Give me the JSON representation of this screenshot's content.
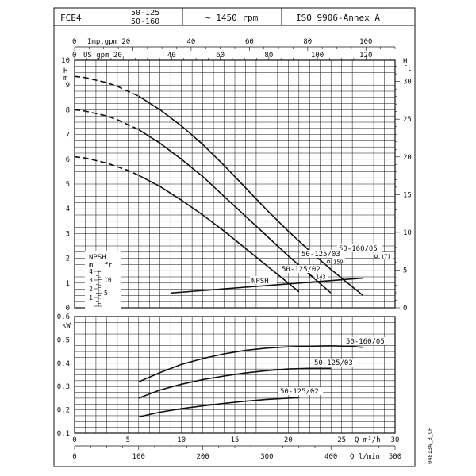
{
  "header": {
    "model": "FCE4",
    "sizes": [
      "50-125",
      "50-160"
    ],
    "speed": "~ 1450 rpm",
    "standard": "ISO 9906-Annex A"
  },
  "footer_code": "04813A_B_CH",
  "chart_data": [
    {
      "type": "line",
      "title": "",
      "x": {
        "unit": "Q m³/h",
        "range": [
          0,
          30
        ],
        "ticks": [
          0,
          5,
          10,
          15,
          20,
          25,
          30
        ]
      },
      "x_secondary": [
        {
          "unit": "Imp.gpm",
          "label": "Imp.gpm 20",
          "range": [
            0,
            110
          ],
          "ticks": [
            0,
            20,
            40,
            60,
            80,
            100
          ]
        },
        {
          "unit": "US gpm",
          "label": "US gpm 20",
          "range": [
            0,
            132
          ],
          "ticks": [
            0,
            20,
            40,
            60,
            80,
            100,
            120
          ]
        },
        {
          "unit": "Q l/min",
          "range": [
            0,
            500
          ],
          "ticks": [
            0,
            100,
            200,
            300,
            400,
            500
          ]
        }
      ],
      "y_left": {
        "unit": "H m",
        "range": [
          0,
          10
        ],
        "ticks": [
          0,
          1,
          2,
          3,
          4,
          5,
          6,
          7,
          8,
          9,
          10
        ]
      },
      "y_right": {
        "unit": "H ft",
        "range": [
          0,
          32.8
        ],
        "ticks": [
          0,
          5,
          10,
          15,
          20,
          25,
          30
        ]
      },
      "grid": true,
      "series": [
        {
          "name": "50-160/05",
          "dashed_until_x": 6,
          "points": [
            [
              0,
              9.35
            ],
            [
              1,
              9.3
            ],
            [
              2,
              9.2
            ],
            [
              3,
              9.1
            ],
            [
              4,
              8.95
            ],
            [
              5,
              8.75
            ],
            [
              6,
              8.55
            ],
            [
              8,
              8.0
            ],
            [
              10,
              7.35
            ],
            [
              12,
              6.6
            ],
            [
              14,
              5.75
            ],
            [
              16,
              4.85
            ],
            [
              18,
              3.95
            ],
            [
              20,
              3.1
            ],
            [
              22,
              2.3
            ],
            [
              24,
              1.55
            ],
            [
              26,
              0.85
            ],
            [
              27,
              0.5
            ]
          ],
          "end_label": "171"
        },
        {
          "name": "50-125/03",
          "dashed_until_x": 6,
          "points": [
            [
              0,
              8.0
            ],
            [
              1,
              7.95
            ],
            [
              2,
              7.85
            ],
            [
              3,
              7.75
            ],
            [
              4,
              7.6
            ],
            [
              5,
              7.4
            ],
            [
              6,
              7.2
            ],
            [
              8,
              6.65
            ],
            [
              10,
              6.0
            ],
            [
              12,
              5.3
            ],
            [
              14,
              4.5
            ],
            [
              16,
              3.7
            ],
            [
              18,
              2.9
            ],
            [
              20,
              2.1
            ],
            [
              22,
              1.35
            ],
            [
              24,
              0.6
            ]
          ],
          "end_label": "159"
        },
        {
          "name": "50-125/02",
          "dashed_until_x": 6,
          "points": [
            [
              0,
              6.1
            ],
            [
              1,
              6.05
            ],
            [
              2,
              5.95
            ],
            [
              3,
              5.85
            ],
            [
              4,
              5.7
            ],
            [
              5,
              5.55
            ],
            [
              6,
              5.35
            ],
            [
              8,
              4.9
            ],
            [
              10,
              4.35
            ],
            [
              12,
              3.75
            ],
            [
              14,
              3.1
            ],
            [
              16,
              2.4
            ],
            [
              18,
              1.7
            ],
            [
              20,
              1.0
            ],
            [
              21,
              0.65
            ]
          ],
          "end_label": "143"
        },
        {
          "name": "NPSH",
          "points": [
            [
              9,
              0.6
            ],
            [
              12,
              0.7
            ],
            [
              15,
              0.8
            ],
            [
              18,
              0.9
            ],
            [
              21,
              1.0
            ],
            [
              24,
              1.1
            ],
            [
              27,
              1.2
            ]
          ]
        }
      ],
      "npsh_inset": {
        "title": "NPSH",
        "units": [
          "m",
          "ft"
        ],
        "m_ticks": [
          1,
          2,
          3,
          4
        ],
        "ft_ticks": [
          5,
          10
        ]
      }
    },
    {
      "type": "line",
      "title": "",
      "x": {
        "unit": "Q m³/h",
        "range": [
          0,
          30
        ],
        "ticks": [
          0,
          5,
          10,
          15,
          20,
          25,
          30
        ]
      },
      "y": {
        "unit": "kW",
        "range": [
          0.1,
          0.6
        ],
        "ticks": [
          0.1,
          0.2,
          0.3,
          0.4,
          0.5,
          0.6
        ]
      },
      "grid": true,
      "series": [
        {
          "name": "50-160/05",
          "points": [
            [
              6,
              0.32
            ],
            [
              8,
              0.36
            ],
            [
              10,
              0.395
            ],
            [
              12,
              0.42
            ],
            [
              14,
              0.44
            ],
            [
              16,
              0.455
            ],
            [
              18,
              0.465
            ],
            [
              20,
              0.47
            ],
            [
              22,
              0.473
            ],
            [
              24,
              0.475
            ],
            [
              26,
              0.472
            ],
            [
              27,
              0.468
            ]
          ]
        },
        {
          "name": "50-125/03",
          "points": [
            [
              6,
              0.25
            ],
            [
              8,
              0.285
            ],
            [
              10,
              0.31
            ],
            [
              12,
              0.33
            ],
            [
              14,
              0.345
            ],
            [
              16,
              0.358
            ],
            [
              18,
              0.368
            ],
            [
              20,
              0.375
            ],
            [
              22,
              0.378
            ],
            [
              24,
              0.378
            ]
          ]
        },
        {
          "name": "50-125/02",
          "points": [
            [
              6,
              0.17
            ],
            [
              8,
              0.19
            ],
            [
              10,
              0.205
            ],
            [
              12,
              0.217
            ],
            [
              14,
              0.228
            ],
            [
              16,
              0.237
            ],
            [
              18,
              0.245
            ],
            [
              20,
              0.25
            ],
            [
              21,
              0.252
            ]
          ]
        }
      ]
    }
  ]
}
